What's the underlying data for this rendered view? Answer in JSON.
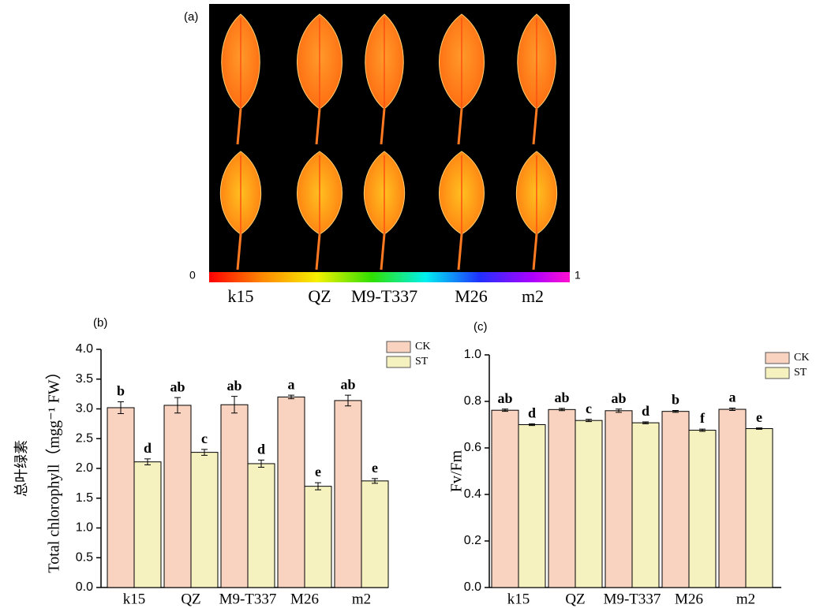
{
  "image_panel": {
    "label": "(a)",
    "colorbar": {
      "min": 0,
      "max": 1
    },
    "samples": [
      "k15",
      "QZ",
      "M9-T337",
      "M26",
      "m2"
    ]
  },
  "chart_data": [
    {
      "type": "bar",
      "title": "(b)",
      "ylabel_cn": "总叶绿素",
      "ylabel": "Total  chlorophyll（mgg⁻¹ FW）",
      "categories": [
        "k15",
        "QZ",
        "M9-T337",
        "M26",
        "m2"
      ],
      "series": [
        {
          "name": "CK",
          "color": "#f9d3bf",
          "values": [
            3.02,
            3.06,
            3.07,
            3.2,
            3.14
          ],
          "errors": [
            0.1,
            0.13,
            0.14,
            0.03,
            0.09
          ],
          "letters": [
            "b",
            "ab",
            "ab",
            "a",
            "ab"
          ]
        },
        {
          "name": "ST",
          "color": "#f6f2c0",
          "values": [
            2.11,
            2.27,
            2.08,
            1.7,
            1.79
          ],
          "errors": [
            0.05,
            0.05,
            0.06,
            0.06,
            0.04
          ],
          "letters": [
            "d",
            "c",
            "d",
            "e",
            "e"
          ]
        }
      ],
      "ylim": [
        0,
        4
      ],
      "yticks": [
        {
          "value": 0,
          "label": "0.0"
        },
        {
          "value": 0.5,
          "label": "0.5"
        },
        {
          "value": 1,
          "label": "1.0"
        },
        {
          "value": 1.5,
          "label": "1.5"
        },
        {
          "value": 2,
          "label": "2.0"
        },
        {
          "value": 2.5,
          "label": "2.5"
        },
        {
          "value": 3,
          "label": "3.0"
        },
        {
          "value": 3.5,
          "label": "3.5"
        },
        {
          "value": 4,
          "label": "4.0"
        }
      ],
      "legend": "upper right"
    },
    {
      "type": "bar",
      "title": "(c)",
      "ylabel": "Fv/Fm",
      "categories": [
        "k15",
        "QZ",
        "M9-T337",
        "M26",
        "m2"
      ],
      "series": [
        {
          "name": "CK",
          "color": "#f9d3bf",
          "values": [
            0.762,
            0.765,
            0.76,
            0.757,
            0.766
          ],
          "errors": [
            0.005,
            0.005,
            0.007,
            0.004,
            0.005
          ],
          "letters": [
            "ab",
            "ab",
            "ab",
            "b",
            "a"
          ]
        },
        {
          "name": "ST",
          "color": "#f6f2c0",
          "values": [
            0.7,
            0.718,
            0.708,
            0.676,
            0.683
          ],
          "errors": [
            0.004,
            0.005,
            0.004,
            0.005,
            0.003
          ],
          "letters": [
            "d",
            "c",
            "d",
            "f",
            "e"
          ]
        }
      ],
      "ylim": [
        0,
        1
      ],
      "yticks": [
        {
          "value": 0,
          "label": "0.0"
        },
        {
          "value": 0.2,
          "label": "0.2"
        },
        {
          "value": 0.4,
          "label": "0.4"
        },
        {
          "value": 0.6,
          "label": "0.6"
        },
        {
          "value": 0.8,
          "label": "0.8"
        },
        {
          "value": 1,
          "label": "1.0"
        }
      ],
      "legend": "upper right"
    }
  ]
}
